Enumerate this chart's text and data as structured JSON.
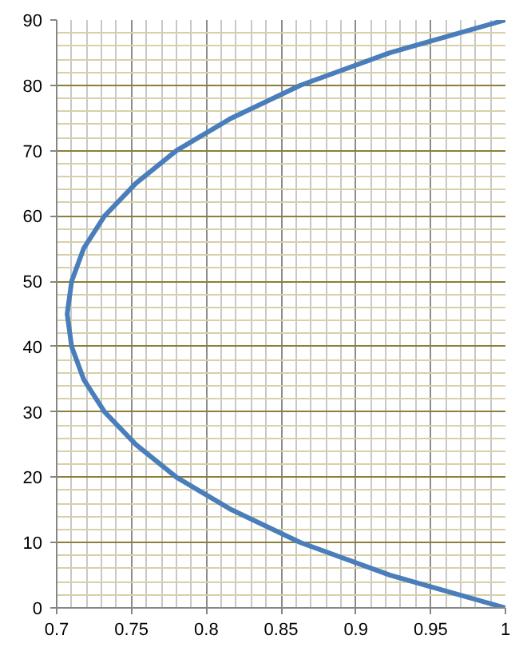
{
  "chart_data": {
    "type": "line",
    "x": [
      1,
      0.923,
      0.863,
      0.817,
      0.78,
      0.753,
      0.732,
      0.718,
      0.71,
      0.707,
      0.71,
      0.718,
      0.732,
      0.753,
      0.78,
      0.817,
      0.863,
      0.923,
      1
    ],
    "series": [
      {
        "color": "#4a7ebb",
        "values": [
          0,
          5,
          10,
          15,
          20,
          25,
          30,
          35,
          40,
          45,
          50,
          55,
          60,
          65,
          70,
          75,
          80,
          85,
          90
        ]
      }
    ],
    "xlim": [
      0.7,
      1
    ],
    "ylim": [
      0,
      90
    ],
    "xticks": [
      0.7,
      {
        "value": 0.71,
        "label": null
      },
      {
        "value": 0.72,
        "label": null
      },
      {
        "value": 0.73,
        "label": null
      },
      {
        "value": 0.74,
        "label": null
      },
      0.75,
      {
        "value": 0.76,
        "label": null
      },
      {
        "value": 0.77,
        "label": null
      },
      {
        "value": 0.78,
        "label": null
      },
      {
        "value": 0.79,
        "label": null
      },
      0.8,
      {
        "value": 0.81,
        "label": null
      },
      {
        "value": 0.82,
        "label": null
      },
      {
        "value": 0.83,
        "label": null
      },
      {
        "value": 0.84,
        "label": null
      },
      0.85,
      {
        "value": 0.86,
        "label": null
      },
      {
        "value": 0.87,
        "label": null
      },
      {
        "value": 0.88,
        "label": null
      },
      {
        "value": 0.89,
        "label": null
      },
      0.9,
      {
        "value": 0.91,
        "label": null
      },
      {
        "value": 0.92,
        "label": null
      },
      {
        "value": 0.93,
        "label": null
      },
      {
        "value": 0.94,
        "label": null
      },
      0.95,
      {
        "value": 0.96,
        "label": null
      },
      {
        "value": 0.97,
        "label": null
      },
      {
        "value": 0.98,
        "label": null
      },
      {
        "value": 0.99,
        "label": null
      },
      1
    ],
    "yticks": [
      0,
      {
        "value": 2,
        "label": null
      },
      {
        "value": 4,
        "label": null
      },
      {
        "value": 6,
        "label": null
      },
      {
        "value": 8,
        "label": null
      },
      10,
      {
        "value": 12,
        "label": null
      },
      {
        "value": 14,
        "label": null
      },
      {
        "value": 16,
        "label": null
      },
      {
        "value": 18,
        "label": null
      },
      20,
      {
        "value": 22,
        "label": null
      },
      {
        "value": 24,
        "label": null
      },
      {
        "value": 26,
        "label": null
      },
      {
        "value": 28,
        "label": null
      },
      30,
      {
        "value": 32,
        "label": null
      },
      {
        "value": 34,
        "label": null
      },
      {
        "value": 36,
        "label": null
      },
      {
        "value": 38,
        "label": null
      },
      40,
      {
        "value": 42,
        "label": null
      },
      {
        "value": 44,
        "label": null
      },
      {
        "value": 46,
        "label": null
      },
      {
        "value": 48,
        "label": null
      },
      50,
      {
        "value": 52,
        "label": null
      },
      {
        "value": 54,
        "label": null
      },
      {
        "value": 56,
        "label": null
      },
      {
        "value": 58,
        "label": null
      },
      60,
      {
        "value": 62,
        "label": null
      },
      {
        "value": 64,
        "label": null
      },
      {
        "value": 66,
        "label": null
      },
      {
        "value": 68,
        "label": null
      },
      70,
      {
        "value": 72,
        "label": null
      },
      {
        "value": 74,
        "label": null
      },
      {
        "value": 76,
        "label": null
      },
      {
        "value": 78,
        "label": null
      },
      80,
      {
        "value": 82,
        "label": null
      },
      {
        "value": 84,
        "label": null
      },
      {
        "value": 86,
        "label": null
      },
      {
        "value": 88,
        "label": null
      },
      90
    ],
    "grid": true,
    "marker": "none",
    "line_style": "solid"
  }
}
